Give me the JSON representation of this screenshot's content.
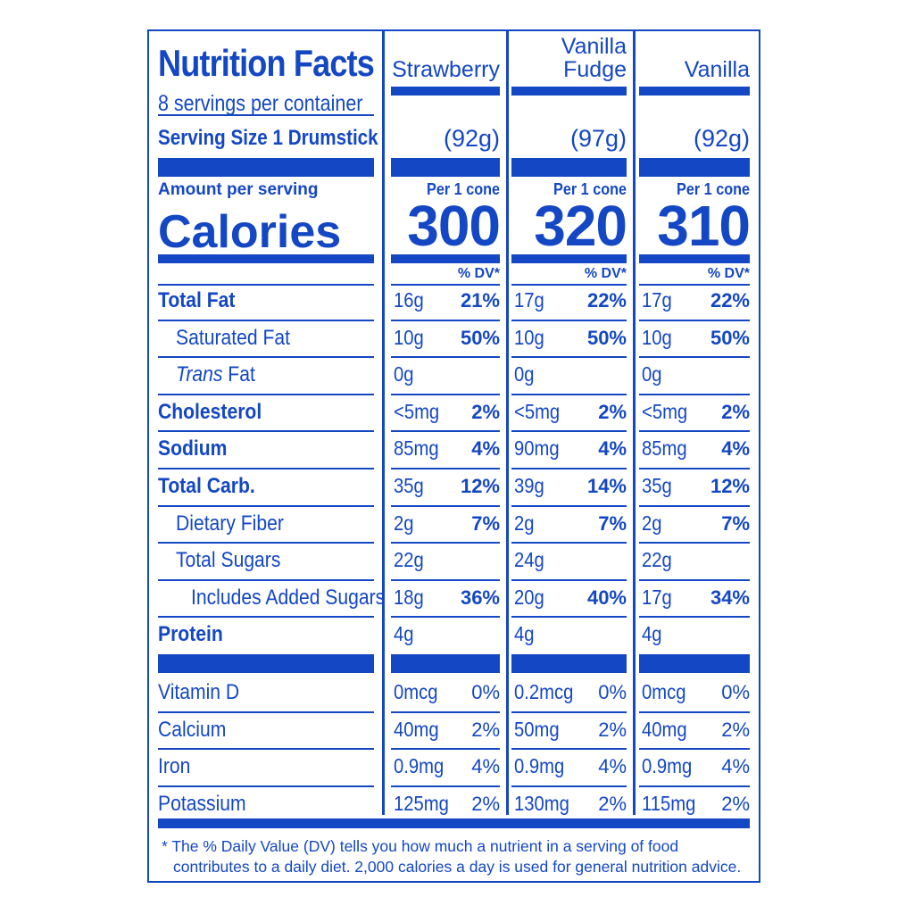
{
  "header": {
    "title": "Nutrition Facts",
    "servings": "8 servings per container",
    "serving_size": "Serving Size 1 Drumstick",
    "amount_per_serving": "Amount per serving",
    "calories_label": "Calories",
    "dv_header": "% DV*"
  },
  "columns": [
    {
      "name": "Strawberry",
      "name_line1": "",
      "name_line2": "Strawberry",
      "size": "(92g)",
      "per": "Per 1 cone",
      "calories": "300"
    },
    {
      "name": "Vanilla Fudge",
      "name_line1": "Vanilla",
      "name_line2": "Fudge",
      "size": "(97g)",
      "per": "Per 1 cone",
      "calories": "320"
    },
    {
      "name": "Vanilla",
      "name_line1": "",
      "name_line2": "Vanilla",
      "size": "(92g)",
      "per": "Per 1 cone",
      "calories": "310"
    }
  ],
  "nutrients": [
    {
      "label": "Total Fat",
      "style": "bold",
      "values": [
        [
          "16g",
          "21%"
        ],
        [
          "17g",
          "22%"
        ],
        [
          "17g",
          "22%"
        ]
      ]
    },
    {
      "label": "Saturated Fat",
      "style": "indent",
      "values": [
        [
          "10g",
          "50%"
        ],
        [
          "10g",
          "50%"
        ],
        [
          "10g",
          "50%"
        ]
      ]
    },
    {
      "label_italic": "Trans",
      "label": " Fat",
      "style": "indent",
      "values": [
        [
          "0g",
          ""
        ],
        [
          "0g",
          ""
        ],
        [
          "0g",
          ""
        ]
      ]
    },
    {
      "label": "Cholesterol",
      "style": "bold",
      "values": [
        [
          "<5mg",
          "2%"
        ],
        [
          "<5mg",
          "2%"
        ],
        [
          "<5mg",
          "2%"
        ]
      ]
    },
    {
      "label": "Sodium",
      "style": "bold",
      "values": [
        [
          "85mg",
          "4%"
        ],
        [
          "90mg",
          "4%"
        ],
        [
          "85mg",
          "4%"
        ]
      ]
    },
    {
      "label": "Total Carb.",
      "style": "bold",
      "values": [
        [
          "35g",
          "12%"
        ],
        [
          "39g",
          "14%"
        ],
        [
          "35g",
          "12%"
        ]
      ]
    },
    {
      "label": "Dietary Fiber",
      "style": "indent",
      "values": [
        [
          "2g",
          "7%"
        ],
        [
          "2g",
          "7%"
        ],
        [
          "2g",
          "7%"
        ]
      ]
    },
    {
      "label": "Total Sugars",
      "style": "indent",
      "values": [
        [
          "22g",
          ""
        ],
        [
          "24g",
          ""
        ],
        [
          "22g",
          ""
        ]
      ]
    },
    {
      "label": "Includes Added Sugars",
      "style": "indent2",
      "values": [
        [
          "18g",
          "36%"
        ],
        [
          "20g",
          "40%"
        ],
        [
          "17g",
          "34%"
        ]
      ]
    },
    {
      "label": "Protein",
      "style": "bold",
      "values": [
        [
          "4g",
          ""
        ],
        [
          "4g",
          ""
        ],
        [
          "4g",
          ""
        ]
      ]
    }
  ],
  "vitamins": [
    {
      "label": "Vitamin D",
      "values": [
        [
          "0mcg",
          "0%"
        ],
        [
          "0.2mcg",
          "0%"
        ],
        [
          "0mcg",
          "0%"
        ]
      ]
    },
    {
      "label": "Calcium",
      "values": [
        [
          "40mg",
          "2%"
        ],
        [
          "50mg",
          "2%"
        ],
        [
          "40mg",
          "2%"
        ]
      ]
    },
    {
      "label": "Iron",
      "values": [
        [
          "0.9mg",
          "4%"
        ],
        [
          "0.9mg",
          "4%"
        ],
        [
          "0.9mg",
          "4%"
        ]
      ]
    },
    {
      "label": "Potassium",
      "values": [
        [
          "125mg",
          "2%"
        ],
        [
          "130mg",
          "2%"
        ],
        [
          "115mg",
          "2%"
        ]
      ]
    }
  ],
  "footnote": {
    "line1": "* The % Daily Value (DV) tells you how much a nutrient in a serving of food",
    "line2": "contributes to a daily diet. 2,000 calories a day is used for general nutrition advice."
  },
  "colors": {
    "ink": "#1447c4",
    "background": "#ffffff"
  }
}
